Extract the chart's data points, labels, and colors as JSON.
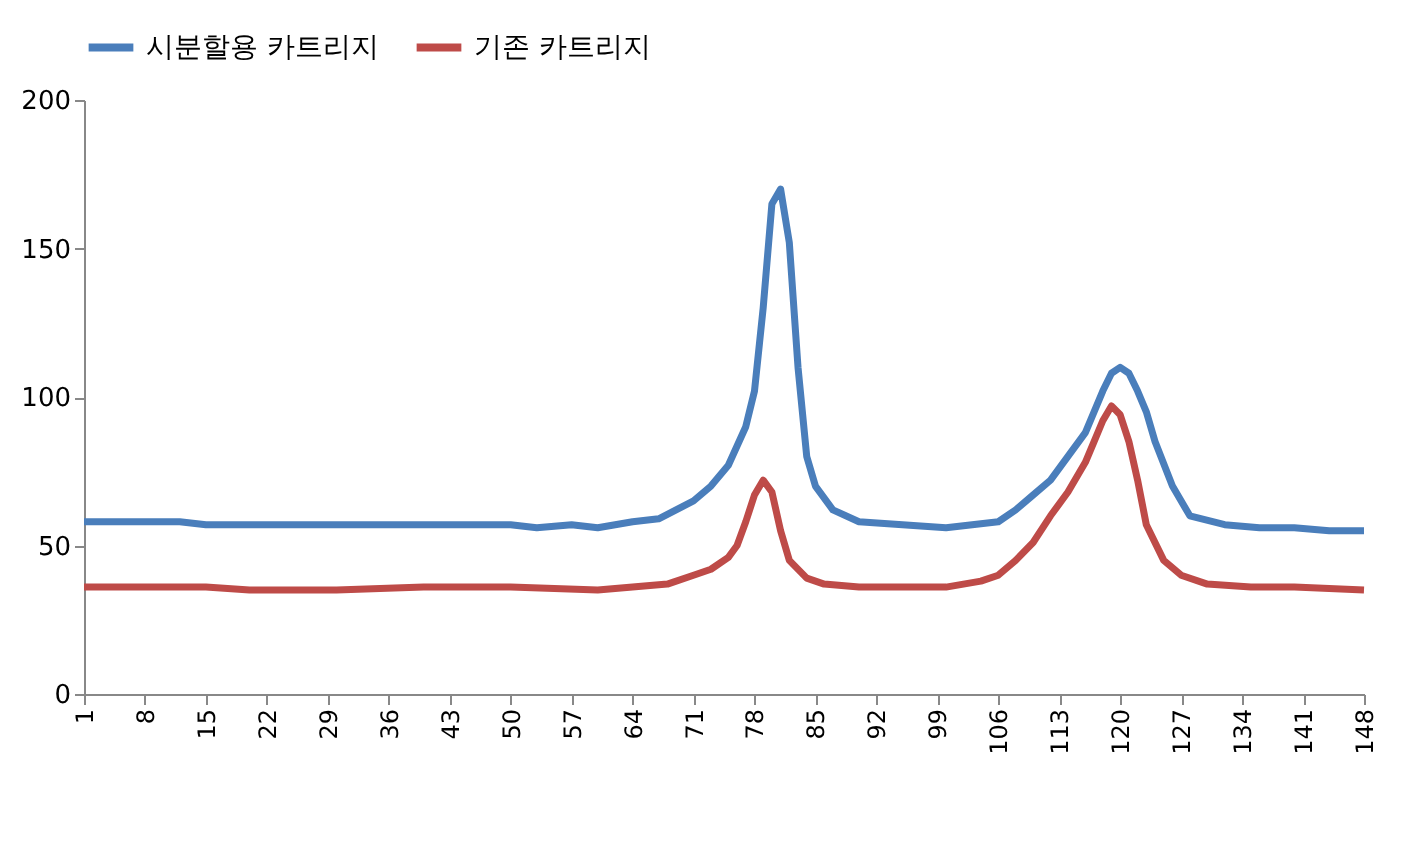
{
  "chart_data": {
    "type": "line",
    "xlim": [
      1,
      148
    ],
    "xticks": [
      1,
      8,
      15,
      22,
      29,
      36,
      43,
      50,
      57,
      64,
      71,
      78,
      85,
      92,
      99,
      106,
      113,
      120,
      127,
      134,
      141,
      148
    ],
    "ylim": [
      0,
      200
    ],
    "yticks": [
      0,
      50,
      100,
      150,
      200
    ],
    "grid": false,
    "legend": "top",
    "marker": "none",
    "line_style": "solid",
    "series": [
      {
        "name": "시분할용 카트리지",
        "color": "#4a7ebb",
        "x": [
          1,
          12,
          15,
          30,
          45,
          50,
          53,
          57,
          60,
          64,
          67,
          71,
          73,
          75,
          77,
          78,
          79,
          80,
          81,
          82,
          83,
          84,
          85,
          87,
          90,
          95,
          100,
          106,
          108,
          110,
          112,
          114,
          116,
          117,
          118,
          119,
          120,
          121,
          122,
          123,
          124,
          126,
          128,
          132,
          136,
          140,
          144,
          148
        ],
        "values": [
          58,
          58,
          57,
          57,
          57,
          57,
          56,
          57,
          56,
          58,
          59,
          65,
          70,
          77,
          90,
          102,
          130,
          165,
          170,
          152,
          110,
          80,
          70,
          62,
          58,
          57,
          56,
          58,
          62,
          67,
          72,
          80,
          88,
          95,
          102,
          108,
          110,
          108,
          102,
          95,
          85,
          70,
          60,
          57,
          56,
          56,
          55,
          55
        ]
      },
      {
        "name": "기존 카트리지",
        "color": "#be4b48",
        "x": [
          1,
          15,
          20,
          30,
          40,
          50,
          60,
          64,
          68,
          71,
          73,
          75,
          76,
          77,
          78,
          79,
          80,
          81,
          82,
          84,
          86,
          90,
          100,
          104,
          106,
          108,
          110,
          112,
          114,
          116,
          117,
          118,
          119,
          120,
          121,
          122,
          123,
          125,
          127,
          130,
          135,
          140,
          148
        ],
        "values": [
          36,
          36,
          35,
          35,
          36,
          36,
          35,
          36,
          37,
          40,
          42,
          46,
          50,
          58,
          67,
          72,
          68,
          55,
          45,
          39,
          37,
          36,
          36,
          38,
          40,
          45,
          51,
          60,
          68,
          78,
          85,
          92,
          97,
          94,
          85,
          72,
          57,
          45,
          40,
          37,
          36,
          36,
          35
        ]
      }
    ]
  }
}
